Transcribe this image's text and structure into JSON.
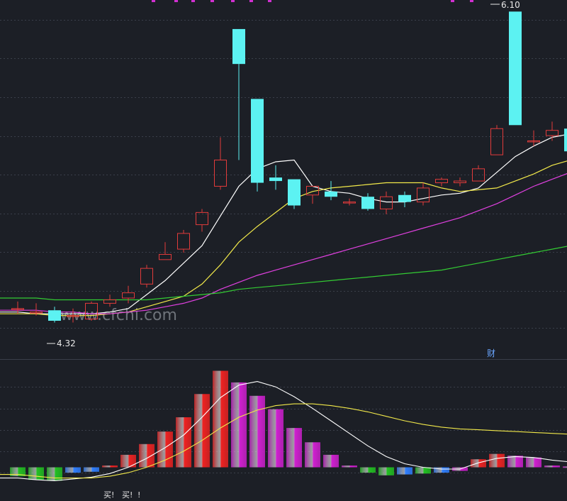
{
  "chart_data": [
    {
      "type": "candlestick",
      "ylim": [
        4.2,
        6.15
      ],
      "high_marker": "6.10",
      "low_marker": "4.32",
      "watermark": "www.cfchi.com",
      "event_flag": "财",
      "colors": {
        "up": "#e23b3b",
        "down": "#5cf2f2",
        "ma5": "#ffffff",
        "ma10": "#f2e94a",
        "ma20": "#e040e0",
        "ma60": "#33cc33"
      },
      "candles": [
        {
          "o": 4.4,
          "h": 4.44,
          "l": 4.37,
          "c": 4.4
        },
        {
          "o": 4.38,
          "h": 4.43,
          "l": 4.36,
          "c": 4.38
        },
        {
          "o": 4.39,
          "h": 4.41,
          "l": 4.32,
          "c": 4.33
        },
        {
          "o": 4.36,
          "h": 4.4,
          "l": 4.32,
          "c": 4.36
        },
        {
          "o": 4.34,
          "h": 4.44,
          "l": 4.33,
          "c": 4.43
        },
        {
          "o": 4.43,
          "h": 4.48,
          "l": 4.41,
          "c": 4.45
        },
        {
          "o": 4.46,
          "h": 4.53,
          "l": 4.43,
          "c": 4.49
        },
        {
          "o": 4.54,
          "h": 4.65,
          "l": 4.52,
          "c": 4.63
        },
        {
          "o": 4.68,
          "h": 4.78,
          "l": 4.68,
          "c": 4.71
        },
        {
          "o": 4.74,
          "h": 4.85,
          "l": 4.72,
          "c": 4.83
        },
        {
          "o": 4.88,
          "h": 4.97,
          "l": 4.84,
          "c": 4.95
        },
        {
          "o": 5.1,
          "h": 5.38,
          "l": 5.08,
          "c": 5.25
        },
        {
          "o": 6.0,
          "h": 6.0,
          "l": 5.25,
          "c": 5.8
        },
        {
          "o": 5.6,
          "h": 5.6,
          "l": 5.07,
          "c": 5.12
        },
        {
          "o": 5.15,
          "h": 5.22,
          "l": 5.08,
          "c": 5.13
        },
        {
          "o": 5.14,
          "h": 5.14,
          "l": 4.97,
          "c": 4.99
        },
        {
          "o": 5.05,
          "h": 5.1,
          "l": 5.0,
          "c": 5.1
        },
        {
          "o": 5.07,
          "h": 5.13,
          "l": 5.02,
          "c": 5.04
        },
        {
          "o": 5.01,
          "h": 5.03,
          "l": 4.99,
          "c": 5.01
        },
        {
          "o": 5.04,
          "h": 5.06,
          "l": 4.96,
          "c": 4.97
        },
        {
          "o": 4.97,
          "h": 5.07,
          "l": 4.94,
          "c": 5.04
        },
        {
          "o": 5.05,
          "h": 5.07,
          "l": 4.98,
          "c": 5.01
        },
        {
          "o": 5.01,
          "h": 5.12,
          "l": 4.99,
          "c": 5.09
        },
        {
          "o": 5.12,
          "h": 5.15,
          "l": 5.1,
          "c": 5.14
        },
        {
          "o": 5.12,
          "h": 5.15,
          "l": 5.1,
          "c": 5.13
        },
        {
          "o": 5.13,
          "h": 5.22,
          "l": 5.13,
          "c": 5.2
        },
        {
          "o": 5.28,
          "h": 5.45,
          "l": 5.28,
          "c": 5.43
        },
        {
          "o": 6.1,
          "h": 6.1,
          "l": 5.45,
          "c": 5.45
        },
        {
          "o": 5.36,
          "h": 5.42,
          "l": 5.33,
          "c": 5.36
        },
        {
          "o": 5.39,
          "h": 5.47,
          "l": 5.36,
          "c": 5.42
        },
        {
          "o": 5.43,
          "h": 5.43,
          "l": 5.29,
          "c": 5.3
        },
        {
          "o": 5.35,
          "h": 5.45,
          "l": 5.33,
          "c": 5.41
        }
      ],
      "ma": [
        {
          "key": "ma5",
          "values": [
            4.38,
            4.37,
            4.37,
            4.37,
            4.37,
            4.38,
            4.4,
            4.48,
            4.56,
            4.66,
            4.76,
            4.93,
            5.1,
            5.2,
            5.24,
            5.25,
            5.1,
            5.07,
            5.06,
            5.03,
            5.01,
            5.01,
            5.03,
            5.05,
            5.06,
            5.09,
            5.18,
            5.27,
            5.33,
            5.38,
            5.4,
            5.43
          ]
        },
        {
          "key": "ma10",
          "values": [
            4.37,
            4.37,
            4.36,
            4.36,
            4.36,
            4.37,
            4.38,
            4.41,
            4.44,
            4.47,
            4.54,
            4.65,
            4.78,
            4.87,
            4.95,
            5.03,
            5.07,
            5.09,
            5.1,
            5.11,
            5.12,
            5.12,
            5.12,
            5.09,
            5.07,
            5.08,
            5.09,
            5.13,
            5.17,
            5.22,
            5.25,
            5.29
          ]
        },
        {
          "key": "ma20",
          "values": [
            4.39,
            4.39,
            4.38,
            4.38,
            4.37,
            4.37,
            4.38,
            4.39,
            4.41,
            4.43,
            4.46,
            4.51,
            4.55,
            4.59,
            4.62,
            4.65,
            4.68,
            4.71,
            4.74,
            4.77,
            4.8,
            4.83,
            4.86,
            4.89,
            4.92,
            4.96,
            5.0,
            5.05,
            5.1,
            5.14,
            5.18,
            5.2
          ]
        },
        {
          "key": "ma60",
          "values": [
            4.46,
            4.46,
            4.45,
            4.45,
            4.45,
            4.45,
            4.45,
            4.45,
            4.46,
            4.47,
            4.48,
            4.49,
            4.51,
            4.52,
            4.53,
            4.54,
            4.55,
            4.56,
            4.57,
            4.58,
            4.59,
            4.6,
            4.61,
            4.62,
            4.64,
            4.66,
            4.68,
            4.7,
            4.72,
            4.74,
            4.76,
            4.78
          ]
        }
      ]
    },
    {
      "type": "bar",
      "ylim": [
        -25,
        110
      ],
      "colors": {
        "up": "#ee2222",
        "down": "#22c022",
        "fade": "#d020d0",
        "small": "#2f7fff",
        "line_a": "#ffffff",
        "line_b": "#f2e94a"
      },
      "values": [
        -10,
        -14,
        -15,
        -6,
        -5,
        2,
        14,
        26,
        40,
        56,
        82,
        108,
        95,
        80,
        65,
        44,
        28,
        14,
        2,
        -6,
        -9,
        -8,
        -7,
        -6,
        -4,
        9,
        15,
        13,
        11,
        2,
        1,
        1
      ],
      "kinds": [
        "down",
        "down",
        "down",
        "small",
        "small",
        "up",
        "up",
        "up",
        "up",
        "up",
        "up",
        "up",
        "fade",
        "fade",
        "fade",
        "fade",
        "fade",
        "fade",
        "fade",
        "down",
        "down",
        "small",
        "down",
        "small",
        "fade",
        "up",
        "up",
        "fade",
        "fade",
        "fade",
        "fade",
        "fade"
      ],
      "line_a": [
        -12,
        -14,
        -15,
        -13,
        -11,
        -7,
        0,
        10,
        22,
        36,
        56,
        78,
        92,
        96,
        90,
        79,
        66,
        52,
        38,
        24,
        12,
        4,
        0,
        -2,
        -2,
        5,
        10,
        12,
        11,
        8,
        6,
        5
      ],
      "line_b": [
        -8,
        -10,
        -12,
        -12,
        -12,
        -10,
        -6,
        0,
        8,
        18,
        30,
        44,
        56,
        64,
        69,
        71,
        71,
        69,
        66,
        62,
        57,
        52,
        48,
        45,
        43,
        42,
        41,
        40,
        39,
        38,
        37,
        37
      ],
      "signals": [
        "买!",
        "买!",
        "!"
      ]
    }
  ]
}
